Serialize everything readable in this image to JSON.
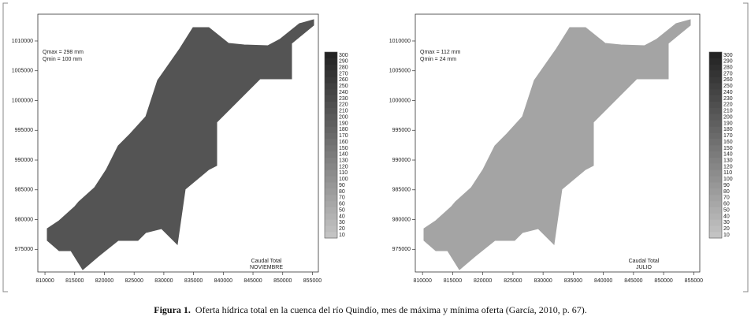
{
  "chart_data": [
    {
      "type": "contour",
      "title": "Caudal Total",
      "subtitle": "NOVIEMBRE",
      "qmax_label": "Qmax = 298 mm",
      "qmin_label": "Qmin = 100 mm",
      "color": "#545454",
      "xlim": [
        808800,
        856000
      ],
      "xticks": [
        810000,
        815000,
        820000,
        825000,
        830000,
        835000,
        840000,
        845000,
        850000,
        855000
      ],
      "ylim": [
        971200,
        1014500
      ],
      "yticks": [
        975000,
        980000,
        985000,
        990000,
        995000,
        1000000,
        1005000,
        1010000
      ],
      "colorbar_ticks": [
        10,
        20,
        30,
        40,
        50,
        60,
        70,
        80,
        90,
        100,
        110,
        120,
        130,
        140,
        150,
        160,
        170,
        180,
        190,
        200,
        210,
        220,
        230,
        240,
        250,
        260,
        270,
        280,
        290,
        300
      ]
    },
    {
      "type": "contour",
      "title": "Caudal Total",
      "subtitle": "JULIO",
      "qmax_label": "Qmax = 112 mm",
      "qmin_label": "Qmin = 24 mm",
      "color": "#a4a4a4",
      "xlim": [
        808800,
        856000
      ],
      "xticks": [
        810000,
        815000,
        820000,
        825000,
        830000,
        835000,
        840000,
        845000,
        850000,
        855000
      ],
      "ylim": [
        971200,
        1014500
      ],
      "yticks": [
        975000,
        980000,
        985000,
        990000,
        995000,
        1000000,
        1005000,
        1010000
      ],
      "colorbar_ticks": [
        10,
        20,
        30,
        40,
        50,
        60,
        70,
        80,
        90,
        100,
        110,
        120,
        130,
        140,
        150,
        160,
        170,
        180,
        190,
        200,
        210,
        220,
        230,
        240,
        250,
        260,
        270,
        280,
        290,
        300
      ]
    }
  ],
  "caption": {
    "label": "Figura 1.",
    "text": "Oferta hídrica total en la cuenca del río Quindío, mes de máxima y  mínima oferta (García, 2010, p. 67)."
  }
}
